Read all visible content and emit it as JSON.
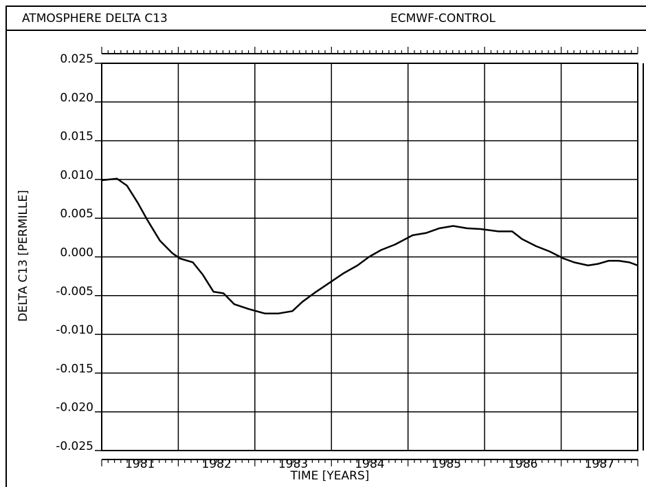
{
  "chart_data": {
    "type": "line",
    "header_left": "ATMOSPHERE DELTA C13",
    "header_right": "ECMWF-CONTROL",
    "xlabel": "TIME [YEARS]",
    "ylabel": "DELTA C13 [PERMILLE]",
    "xlim": [
      1981,
      1988
    ],
    "xticks": [
      {
        "value": 1981.5,
        "label": "1981"
      },
      {
        "value": 1982.5,
        "label": "1982"
      },
      {
        "value": 1983.5,
        "label": "1983"
      },
      {
        "value": 1984.5,
        "label": "1984"
      },
      {
        "value": 1985.5,
        "label": "1985"
      },
      {
        "value": 1986.5,
        "label": "1986"
      },
      {
        "value": 1987.5,
        "label": "1987"
      }
    ],
    "xgrid": [
      1982,
      1983,
      1984,
      1985,
      1986,
      1987
    ],
    "ylim": [
      -0.025,
      0.025
    ],
    "yticks": [
      {
        "value": 0.025,
        "label": "0.025"
      },
      {
        "value": 0.02,
        "label": "0.020"
      },
      {
        "value": 0.015,
        "label": "0.015"
      },
      {
        "value": 0.01,
        "label": "0.010"
      },
      {
        "value": 0.005,
        "label": "0.005"
      },
      {
        "value": 0,
        "label": "0.000"
      },
      {
        "value": -0.005,
        "label": "-0.005"
      },
      {
        "value": -0.01,
        "label": "-0.010"
      },
      {
        "value": -0.015,
        "label": "-0.015"
      },
      {
        "value": -0.02,
        "label": "-0.020"
      },
      {
        "value": -0.025,
        "label": "-0.025"
      }
    ],
    "grid": true,
    "x": [
      1981.0,
      1981.2,
      1981.33,
      1981.47,
      1981.6,
      1981.76,
      1981.92,
      1982.02,
      1982.19,
      1982.32,
      1982.46,
      1982.59,
      1982.73,
      1982.91,
      1983.13,
      1983.31,
      1983.49,
      1983.62,
      1983.8,
      1983.98,
      1984.16,
      1984.34,
      1984.49,
      1984.65,
      1984.83,
      1985.06,
      1985.24,
      1985.41,
      1985.59,
      1985.77,
      1985.95,
      1986.18,
      1986.36,
      1986.49,
      1986.67,
      1986.85,
      1987.03,
      1987.17,
      1987.35,
      1987.48,
      1987.62,
      1987.75,
      1987.89,
      1988.0
    ],
    "series": [
      {
        "color": "#000000",
        "values": [
          0.0099,
          0.0101,
          0.0092,
          0.007,
          0.0047,
          0.0021,
          0.0005,
          -0.0002,
          -0.0007,
          -0.0023,
          -0.0045,
          -0.0047,
          -0.0061,
          -0.0067,
          -0.0073,
          -0.0073,
          -0.007,
          -0.0058,
          -0.0045,
          -0.0033,
          -0.0021,
          -0.0011,
          0.0,
          0.0009,
          0.0016,
          0.0028,
          0.0031,
          0.0037,
          0.004,
          0.0037,
          0.0036,
          0.0033,
          0.0033,
          0.0023,
          0.0014,
          0.0007,
          -0.0002,
          -0.0007,
          -0.0011,
          -0.0009,
          -0.0005,
          -0.0005,
          -0.0007,
          -0.0011
        ]
      }
    ]
  }
}
